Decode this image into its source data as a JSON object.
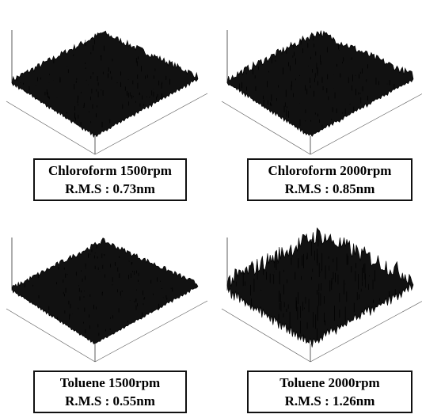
{
  "panels": [
    {
      "title": "Chloroform 1500rpm",
      "rms": "R.M.S : 0.73nm"
    },
    {
      "title": "Chloroform 2000rpm",
      "rms": "R.M.S : 0.85nm"
    },
    {
      "title": "Toluene 1500rpm",
      "rms": "R.M.S : 0.55nm"
    },
    {
      "title": "Toluene 2000rpm",
      "rms": "R.M.S : 1.26nm"
    }
  ]
}
